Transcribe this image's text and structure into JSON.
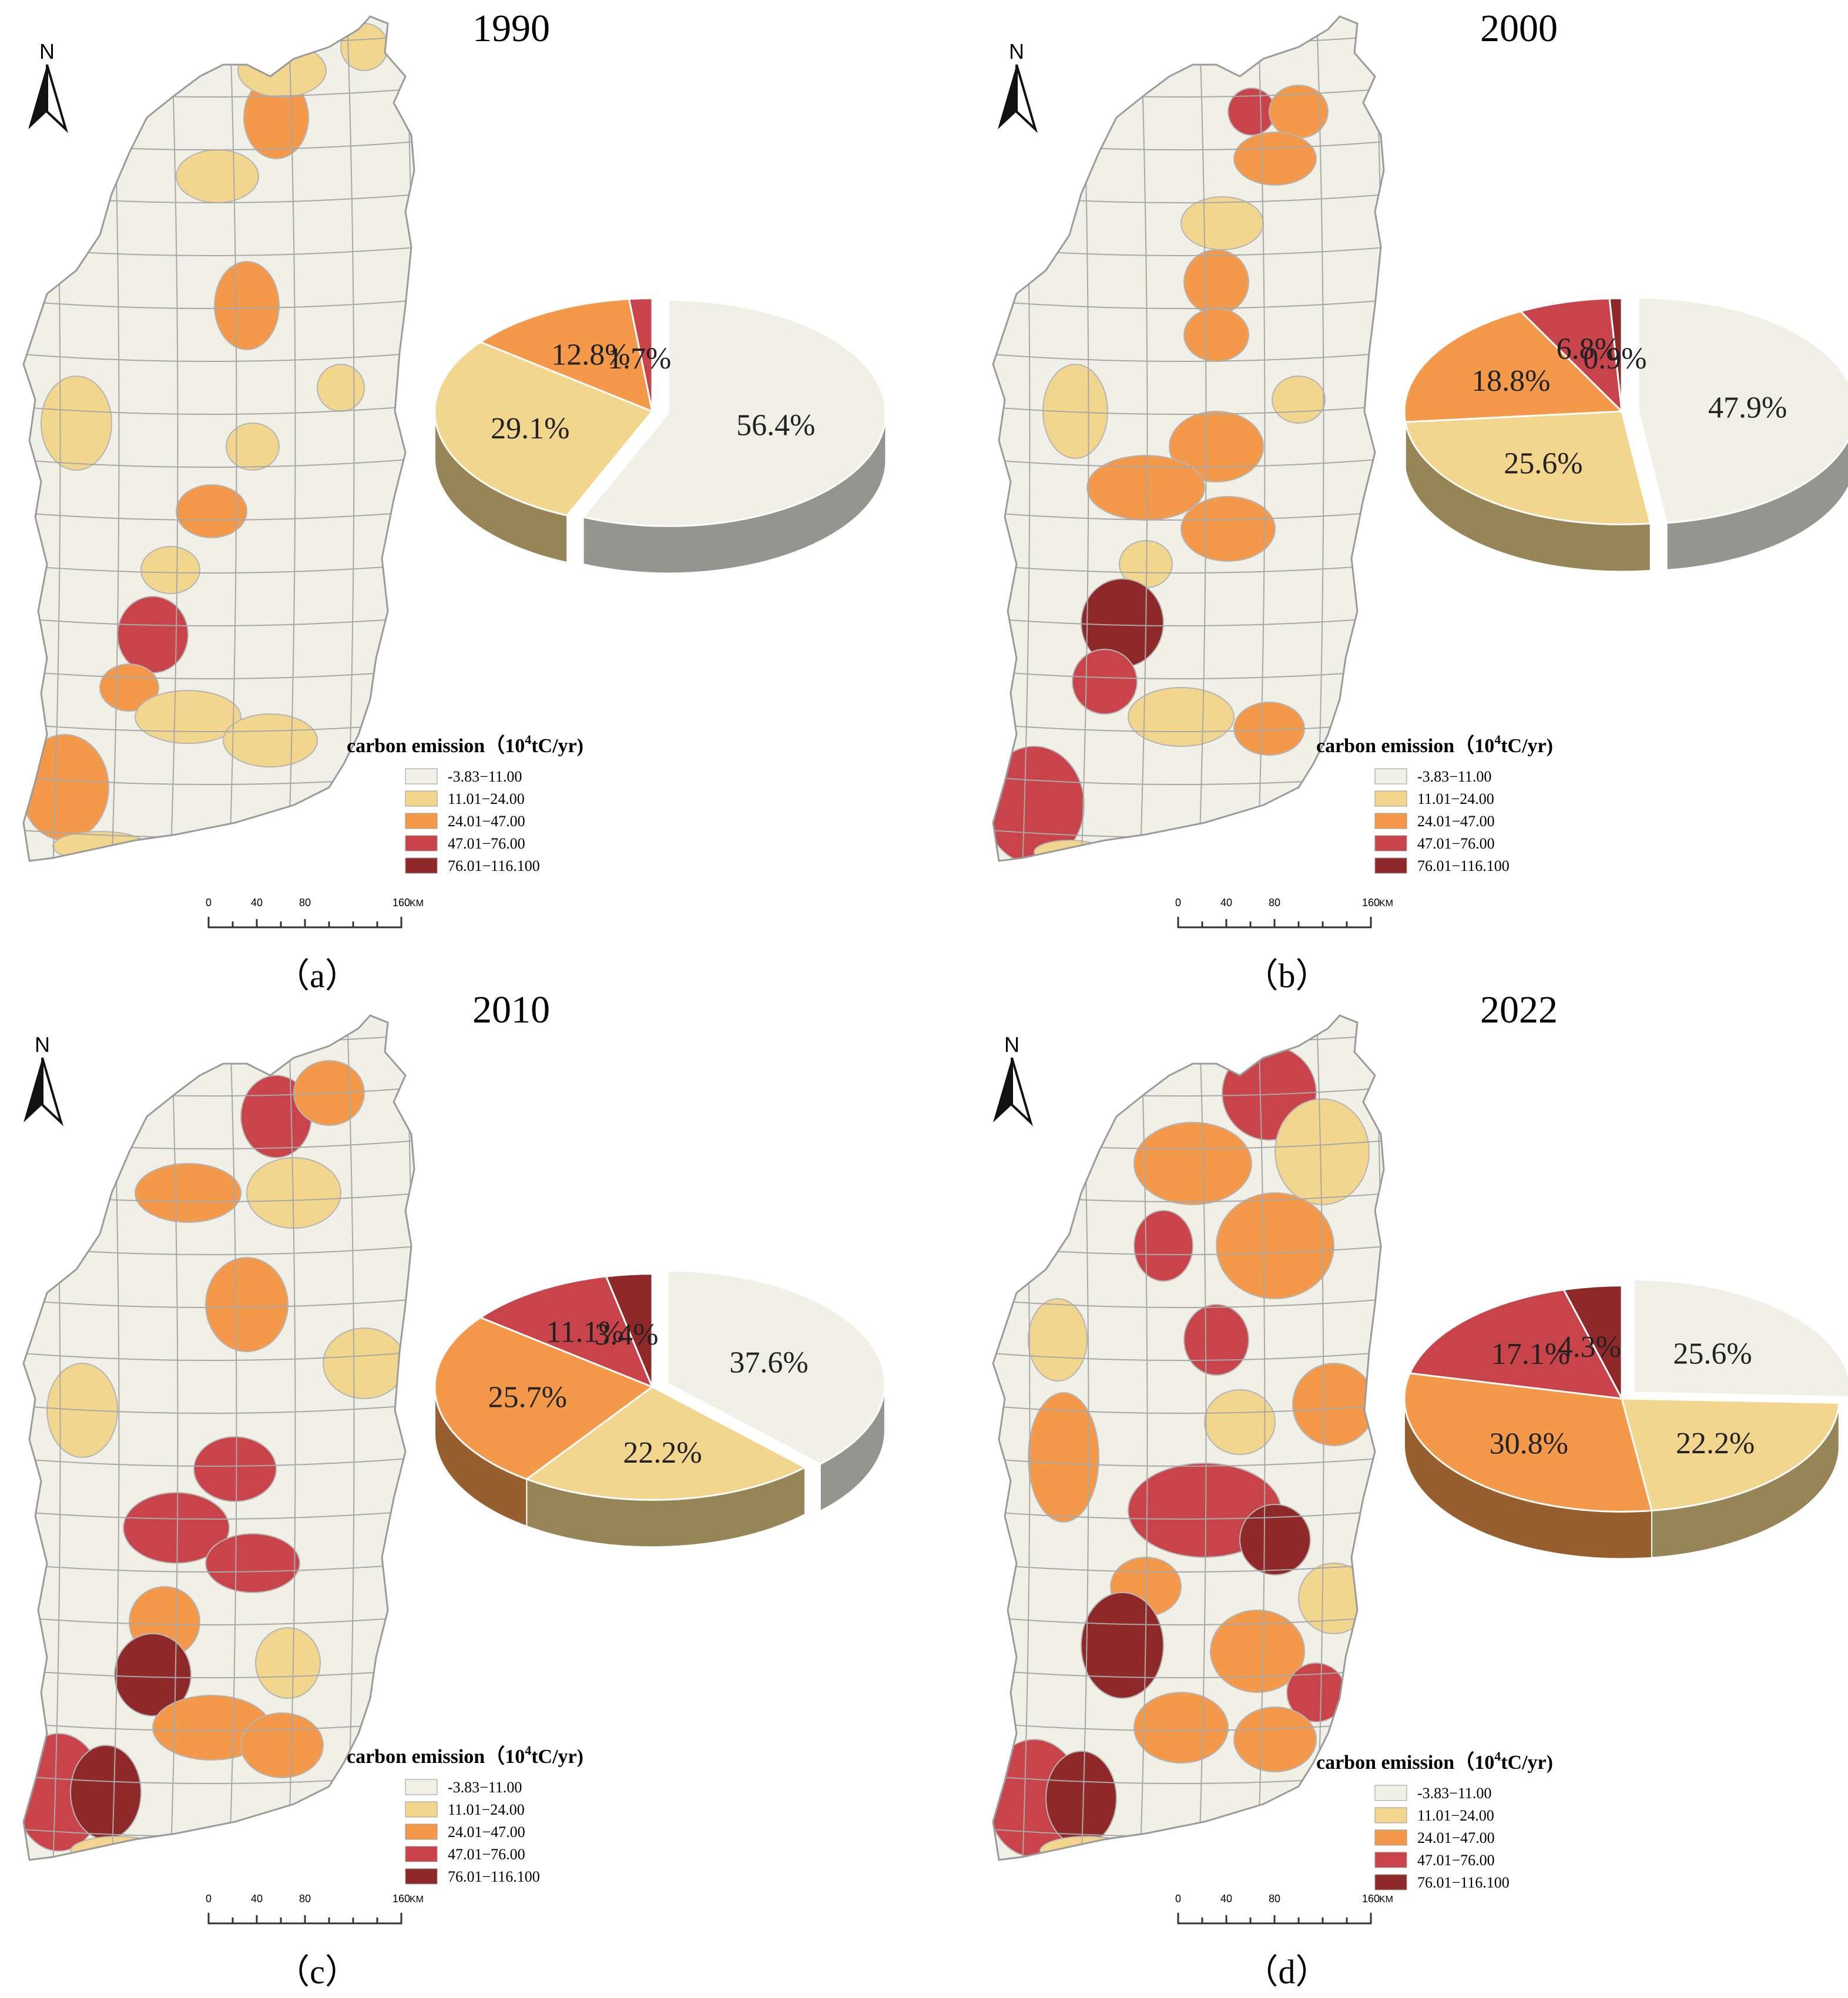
{
  "figure": {
    "legend_title": "carbon emission（",
    "legend_title_unit_base": "10",
    "legend_title_unit_exp": "4",
    "legend_title_unit_rest": "tC/yr)",
    "legend_classes": [
      "-3.83−11.00",
      "11.01−24.00",
      "24.01−47.00",
      "47.01−76.00",
      "76.01−116.100"
    ],
    "class_colors": [
      "#f1f0e7",
      "#f3d68e",
      "#f4994a",
      "#c9434a",
      "#8f2828"
    ],
    "scale_bar": {
      "ticks": [
        "0",
        "40",
        "80",
        "160"
      ],
      "unit": "KM"
    },
    "north_label": "N"
  },
  "panels": [
    {
      "year": "1990",
      "caption": "（a）",
      "pie": [
        {
          "label": "56.4%",
          "value": 56.4,
          "class_index": 0
        },
        {
          "label": "29.1%",
          "value": 29.1,
          "class_index": 1
        },
        {
          "label": "12.8%",
          "value": 12.8,
          "class_index": 2
        },
        {
          "label": "1.7%",
          "value": 1.7,
          "class_index": 3
        }
      ]
    },
    {
      "year": "2000",
      "caption": "（b）",
      "pie": [
        {
          "label": "47.9%",
          "value": 47.9,
          "class_index": 0
        },
        {
          "label": "25.6%",
          "value": 25.6,
          "class_index": 1
        },
        {
          "label": "18.8%",
          "value": 18.8,
          "class_index": 2
        },
        {
          "label": "6.8%",
          "value": 6.8,
          "class_index": 3
        },
        {
          "label": "0.9%",
          "value": 0.9,
          "class_index": 4
        }
      ]
    },
    {
      "year": "2010",
      "caption": "（c）",
      "pie": [
        {
          "label": "37.6%",
          "value": 37.6,
          "class_index": 0
        },
        {
          "label": "22.2%",
          "value": 22.2,
          "class_index": 1
        },
        {
          "label": "25.7%",
          "value": 25.7,
          "class_index": 2
        },
        {
          "label": "11.1%",
          "value": 11.1,
          "class_index": 3
        },
        {
          "label": "3.4%",
          "value": 3.4,
          "class_index": 4
        }
      ]
    },
    {
      "year": "2022",
      "caption": "（d）",
      "pie": [
        {
          "label": "25.6%",
          "value": 25.6,
          "class_index": 0
        },
        {
          "label": "22.2%",
          "value": 22.2,
          "class_index": 1
        },
        {
          "label": "30.8%",
          "value": 30.8,
          "class_index": 2
        },
        {
          "label": "17.1%",
          "value": 17.1,
          "class_index": 3
        },
        {
          "label": "4.3%",
          "value": 4.3,
          "class_index": 4
        }
      ]
    }
  ]
}
